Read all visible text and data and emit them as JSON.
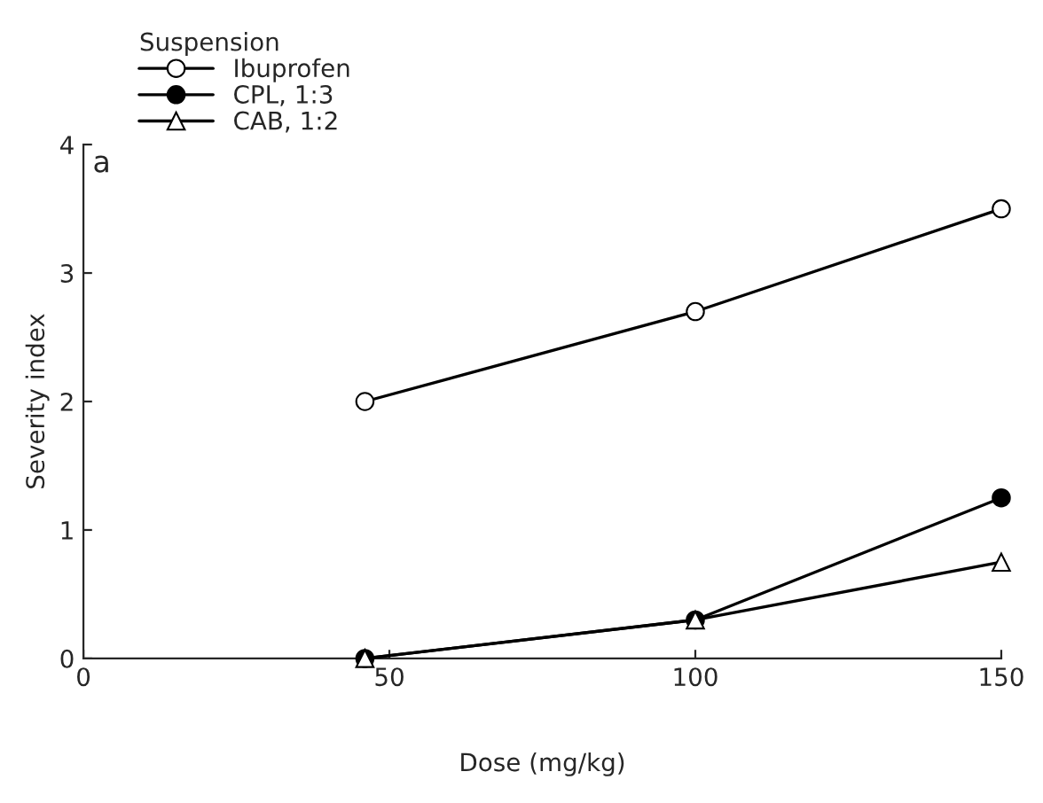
{
  "chart_data": {
    "type": "line",
    "xlabel": "Dose (mg/kg)",
    "ylabel": "Severity index",
    "legend_title": "Suspension",
    "x": [
      46,
      100,
      150
    ],
    "series": [
      {
        "name": "Ibuprofen",
        "color": "#000000",
        "marker": "circle",
        "values": [
          2.0,
          2.7,
          3.5
        ]
      },
      {
        "name": "CPL, 1:3",
        "color": "#000000",
        "marker": "circle",
        "values": [
          0,
          0.3,
          1.25
        ]
      },
      {
        "name": "CAB, 1:2",
        "color": "#000000",
        "marker": "triangle",
        "values": [
          0,
          0.3,
          0.75
        ]
      }
    ],
    "xlim": [
      0,
      150
    ],
    "xticks": [
      0,
      50,
      100,
      150
    ],
    "ylim": [
      0,
      4
    ],
    "yticks": [
      0,
      1,
      2,
      3,
      4
    ],
    "annotations": [
      "a"
    ],
    "legend": "top left",
    "grid": false,
    "line_style": "solid"
  }
}
